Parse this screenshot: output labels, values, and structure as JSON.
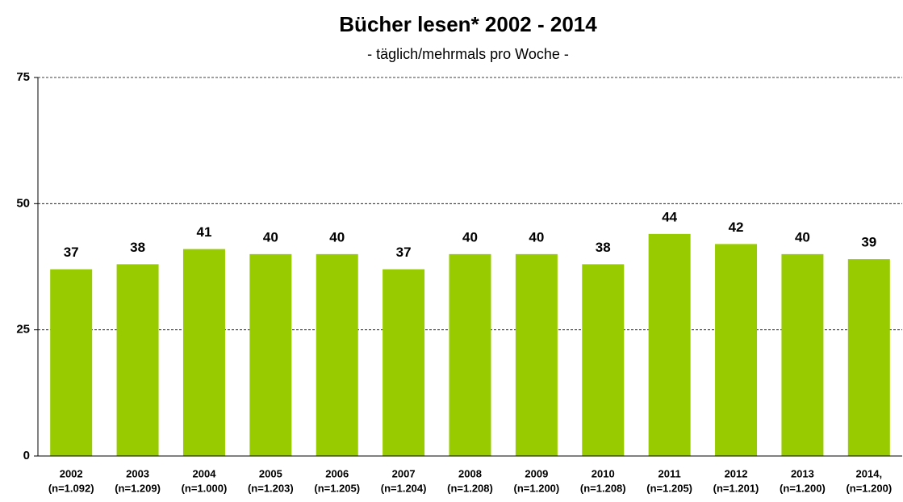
{
  "chart_data": {
    "type": "bar",
    "title": "Bücher lesen* 2002 - 2014",
    "subtitle": "- täglich/mehrmals pro Woche -",
    "categories": [
      "2002",
      "2003",
      "2004",
      "2005",
      "2006",
      "2007",
      "2008",
      "2009",
      "2010",
      "2011",
      "2012",
      "2013",
      "2014,"
    ],
    "sample_sizes": [
      "(n=1.092)",
      "(n=1.209)",
      "(n=1.000)",
      "(n=1.203)",
      "(n=1.205)",
      "(n=1.204)",
      "(n=1.208)",
      "(n=1.200)",
      "(n=1.208)",
      "(n=1.205)",
      "(n=1.201)",
      "(n=1.200)",
      "(n=1.200)"
    ],
    "values": [
      37,
      38,
      41,
      40,
      40,
      37,
      40,
      40,
      38,
      44,
      42,
      40,
      39
    ],
    "color": "#99cc00",
    "ylim": [
      0,
      75
    ],
    "yticks": [
      0,
      25,
      50,
      75
    ],
    "grid": true
  }
}
